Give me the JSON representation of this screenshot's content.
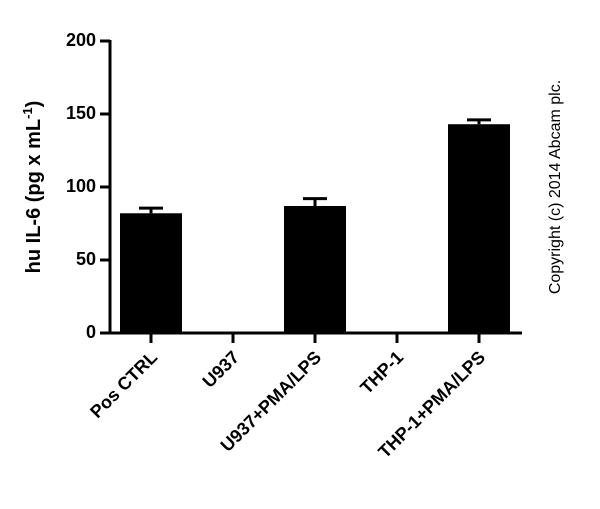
{
  "chart_data": {
    "type": "bar",
    "y_label": {
      "text": "hu IL-6 (pg x mL",
      "superscript": "-1",
      "suffix": ")"
    },
    "categories": [
      "Pos CTRL",
      "U937",
      "U937+PMA/LPS",
      "THP-1",
      "THP-1+PMA/LPS"
    ],
    "values": [
      82,
      1,
      87,
      1,
      143
    ],
    "errors": [
      3.5,
      0,
      5,
      0,
      3
    ],
    "color": "#000000",
    "ylim": [
      0,
      200
    ],
    "yticks": [
      0,
      50,
      100,
      150,
      200
    ],
    "annotation": "Copyright (c) 2014 Abcam plc."
  }
}
